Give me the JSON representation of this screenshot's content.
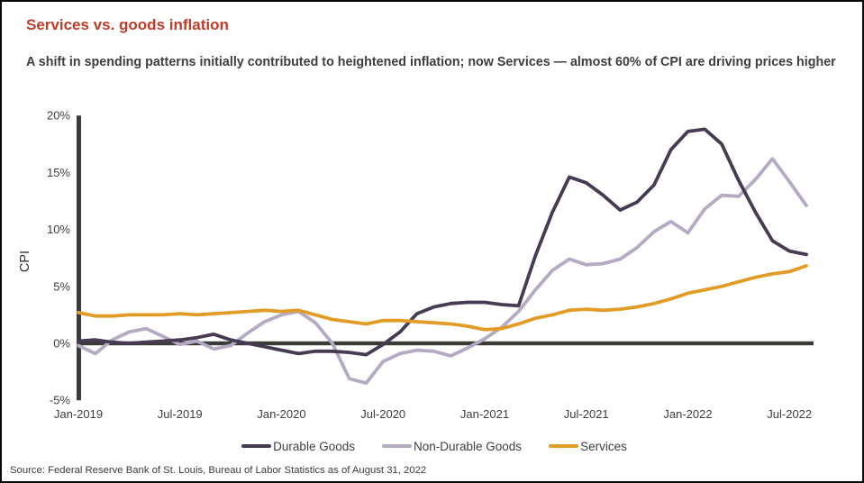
{
  "header": {
    "title": "Services vs. goods inflation",
    "subtitle": "A shift in spending patterns initially contributed to heightened inflation; now Services — almost 60% of CPI are driving prices higher"
  },
  "source": "Source: Federal Reserve Bank of St. Louis, Bureau of Labor Statistics as of August 31, 2022",
  "colors": {
    "title_accent": "#c13b27",
    "subtitle_text": "#3e3e3e",
    "axis": "#3b3b38",
    "durable_goods": "#463b52",
    "non_durable_goods": "#b5aac4",
    "services": "#e29c25",
    "frame_border": "#0a0a0a",
    "background": "#ffffff"
  },
  "chart_data": {
    "type": "line",
    "title": "Services vs. goods inflation",
    "xlabel": "",
    "ylabel": "CPI",
    "ylim": [
      -5,
      20
    ],
    "grid": false,
    "legend_position": "bottom",
    "axis_color": "#3b3b38",
    "draw_order": [
      1,
      0,
      2
    ],
    "x": [
      "Jan-2019",
      "Feb-2019",
      "Mar-2019",
      "Apr-2019",
      "May-2019",
      "Jun-2019",
      "Jul-2019",
      "Aug-2019",
      "Sep-2019",
      "Oct-2019",
      "Nov-2019",
      "Dec-2019",
      "Jan-2020",
      "Feb-2020",
      "Mar-2020",
      "Apr-2020",
      "May-2020",
      "Jun-2020",
      "Jul-2020",
      "Aug-2020",
      "Sep-2020",
      "Oct-2020",
      "Nov-2020",
      "Dec-2020",
      "Jan-2021",
      "Feb-2021",
      "Mar-2021",
      "Apr-2021",
      "May-2021",
      "Jun-2021",
      "Jul-2021",
      "Aug-2021",
      "Sep-2021",
      "Oct-2021",
      "Nov-2021",
      "Dec-2021",
      "Jan-2022",
      "Feb-2022",
      "Mar-2022",
      "Apr-2022",
      "May-2022",
      "Jun-2022",
      "Jul-2022",
      "Aug-2022"
    ],
    "y_ticks": [
      {
        "value": 20,
        "label": "20%"
      },
      {
        "value": 15,
        "label": "15%"
      },
      {
        "value": 10,
        "label": "10%"
      },
      {
        "value": 5,
        "label": "5%"
      },
      {
        "value": 0,
        "label": "0%"
      },
      {
        "value": -5,
        "label": "-5%"
      }
    ],
    "x_ticks": [
      {
        "month_index": 0,
        "label": "Jan-2019"
      },
      {
        "month_index": 6,
        "label": "Jul-2019"
      },
      {
        "month_index": 12,
        "label": "Jan-2020"
      },
      {
        "month_index": 18,
        "label": "Jul-2020"
      },
      {
        "month_index": 24,
        "label": "Jan-2021"
      },
      {
        "month_index": 30,
        "label": "Jul-2021"
      },
      {
        "month_index": 36,
        "label": "Jan-2022"
      },
      {
        "month_index": 42,
        "label": "Jul-2022"
      }
    ],
    "series": [
      {
        "name": "Durable Goods",
        "color": "#463b52",
        "values": [
          0.2,
          0.3,
          0.1,
          0.0,
          0.1,
          0.2,
          0.3,
          0.5,
          0.8,
          0.3,
          0.0,
          -0.3,
          -0.6,
          -0.9,
          -0.7,
          -0.7,
          -0.8,
          -1.0,
          -0.1,
          1.0,
          2.6,
          3.2,
          3.5,
          3.6,
          3.6,
          3.4,
          3.3,
          7.7,
          11.5,
          14.6,
          14.1,
          13.0,
          11.7,
          12.4,
          13.9,
          17.0,
          18.6,
          18.8,
          17.5,
          14.3,
          11.5,
          9.0,
          8.1,
          7.8
        ]
      },
      {
        "name": "Non-Durable Goods",
        "color": "#b5aac4",
        "values": [
          -0.2,
          -0.9,
          0.3,
          1.0,
          1.3,
          0.6,
          -0.1,
          0.2,
          -0.5,
          -0.2,
          0.9,
          1.9,
          2.5,
          2.8,
          1.8,
          0.0,
          -3.1,
          -3.5,
          -1.6,
          -0.9,
          -0.6,
          -0.7,
          -1.1,
          -0.4,
          0.4,
          1.4,
          2.8,
          4.7,
          6.4,
          7.4,
          6.9,
          7.0,
          7.4,
          8.4,
          9.8,
          10.7,
          9.7,
          11.8,
          13.0,
          12.9,
          14.4,
          16.2,
          14.2,
          12.1
        ]
      },
      {
        "name": "Services",
        "color": "#e29c25",
        "values": [
          2.7,
          2.4,
          2.4,
          2.5,
          2.5,
          2.5,
          2.6,
          2.5,
          2.6,
          2.7,
          2.8,
          2.9,
          2.8,
          2.9,
          2.5,
          2.1,
          1.9,
          1.7,
          2.0,
          2.0,
          1.9,
          1.8,
          1.7,
          1.5,
          1.2,
          1.3,
          1.7,
          2.2,
          2.5,
          2.9,
          3.0,
          2.9,
          3.0,
          3.2,
          3.5,
          3.9,
          4.4,
          4.7,
          5.0,
          5.4,
          5.8,
          6.1,
          6.3,
          6.8
        ]
      }
    ]
  }
}
